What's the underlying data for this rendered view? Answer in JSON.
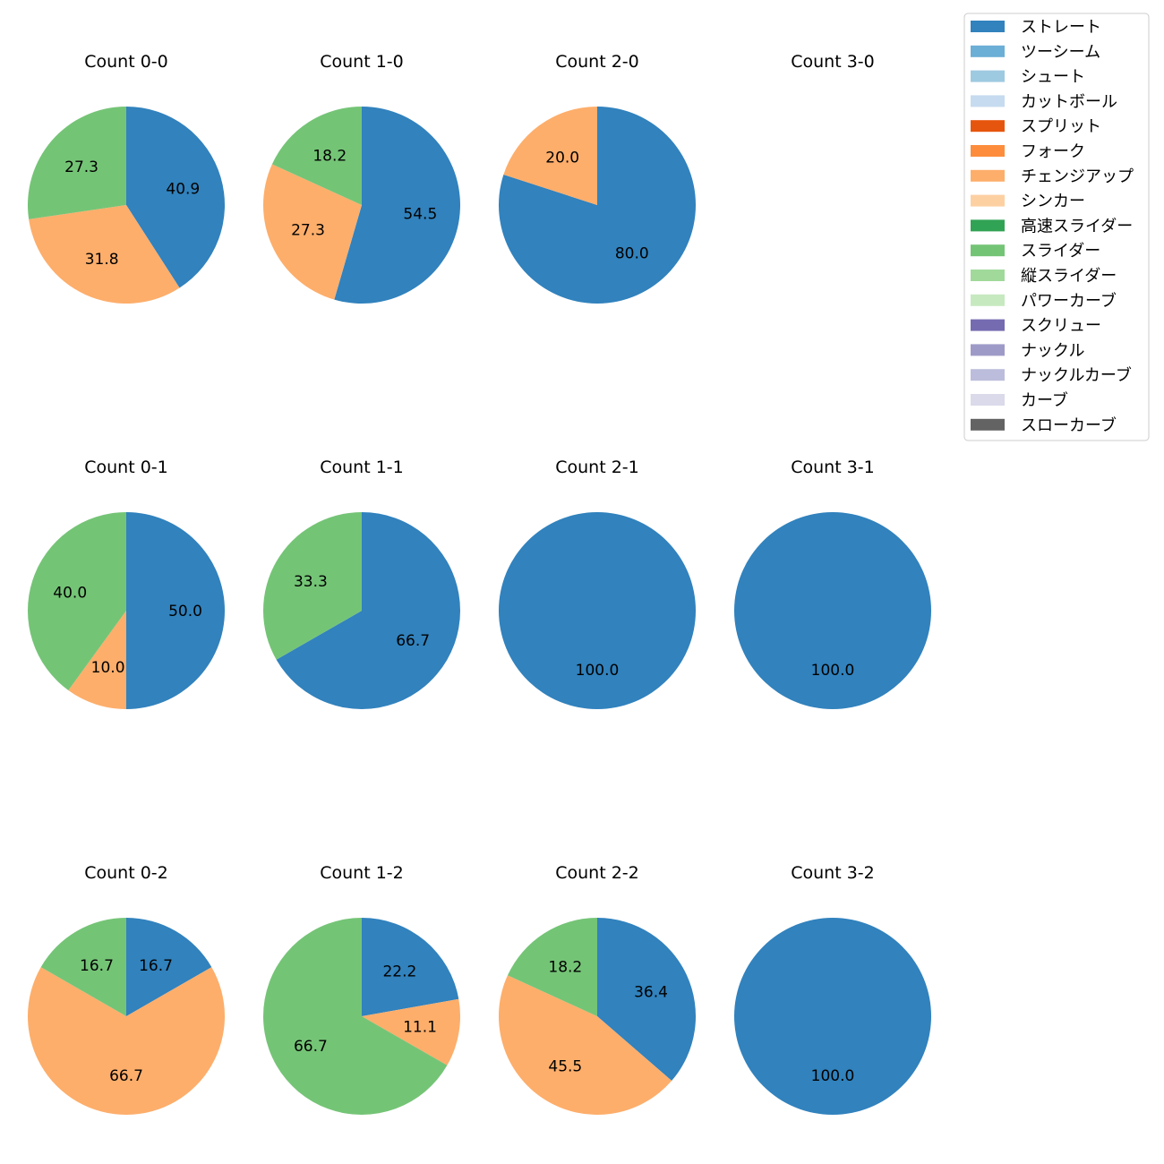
{
  "chart_data": {
    "type": "pie",
    "start_angle": 90,
    "direction": "clockwise",
    "legend": {
      "placement": "top-right",
      "entries": [
        {
          "label": "ストレート",
          "color": "#3182bd"
        },
        {
          "label": "ツーシーム",
          "color": "#6baed6"
        },
        {
          "label": "シュート",
          "color": "#9ecae1"
        },
        {
          "label": "カットボール",
          "color": "#c6dbef"
        },
        {
          "label": "スプリット",
          "color": "#e6550d"
        },
        {
          "label": "フォーク",
          "color": "#fd8d3c"
        },
        {
          "label": "チェンジアップ",
          "color": "#fdae6b"
        },
        {
          "label": "シンカー",
          "color": "#fdd0a2"
        },
        {
          "label": "高速スライダー",
          "color": "#31a354"
        },
        {
          "label": "スライダー",
          "color": "#74c476"
        },
        {
          "label": "縦スライダー",
          "color": "#a1d99b"
        },
        {
          "label": "パワーカーブ",
          "color": "#c7e9c0"
        },
        {
          "label": "スクリュー",
          "color": "#756bb1"
        },
        {
          "label": "ナックル",
          "color": "#9e9ac8"
        },
        {
          "label": "ナックルカーブ",
          "color": "#bcbddc"
        },
        {
          "label": "カーブ",
          "color": "#dadaeb"
        },
        {
          "label": "スローカーブ",
          "color": "#636363"
        }
      ]
    },
    "pies": [
      {
        "title": "Count 0-0",
        "slices": [
          {
            "pitch": "ストレート",
            "value": 40.9
          },
          {
            "pitch": "チェンジアップ",
            "value": 31.8
          },
          {
            "pitch": "スライダー",
            "value": 27.3
          }
        ]
      },
      {
        "title": "Count 1-0",
        "slices": [
          {
            "pitch": "ストレート",
            "value": 54.5
          },
          {
            "pitch": "チェンジアップ",
            "value": 27.3
          },
          {
            "pitch": "スライダー",
            "value": 18.2
          }
        ]
      },
      {
        "title": "Count 2-0",
        "slices": [
          {
            "pitch": "ストレート",
            "value": 80.0
          },
          {
            "pitch": "チェンジアップ",
            "value": 20.0
          }
        ]
      },
      {
        "title": "Count 3-0",
        "slices": []
      },
      {
        "title": "Count 0-1",
        "slices": [
          {
            "pitch": "ストレート",
            "value": 50.0
          },
          {
            "pitch": "チェンジアップ",
            "value": 10.0
          },
          {
            "pitch": "スライダー",
            "value": 40.0
          }
        ]
      },
      {
        "title": "Count 1-1",
        "slices": [
          {
            "pitch": "ストレート",
            "value": 66.7
          },
          {
            "pitch": "スライダー",
            "value": 33.3
          }
        ]
      },
      {
        "title": "Count 2-1",
        "slices": [
          {
            "pitch": "ストレート",
            "value": 100.0
          }
        ]
      },
      {
        "title": "Count 3-1",
        "slices": [
          {
            "pitch": "ストレート",
            "value": 100.0
          }
        ]
      },
      {
        "title": "Count 0-2",
        "slices": [
          {
            "pitch": "ストレート",
            "value": 16.7
          },
          {
            "pitch": "チェンジアップ",
            "value": 66.7
          },
          {
            "pitch": "スライダー",
            "value": 16.7
          }
        ]
      },
      {
        "title": "Count 1-2",
        "slices": [
          {
            "pitch": "ストレート",
            "value": 22.2
          },
          {
            "pitch": "チェンジアップ",
            "value": 11.1
          },
          {
            "pitch": "スライダー",
            "value": 66.7
          }
        ]
      },
      {
        "title": "Count 2-2",
        "slices": [
          {
            "pitch": "ストレート",
            "value": 36.4
          },
          {
            "pitch": "チェンジアップ",
            "value": 45.5
          },
          {
            "pitch": "スライダー",
            "value": 18.2
          }
        ]
      },
      {
        "title": "Count 3-2",
        "slices": [
          {
            "pitch": "ストレート",
            "value": 100.0
          }
        ]
      }
    ]
  }
}
